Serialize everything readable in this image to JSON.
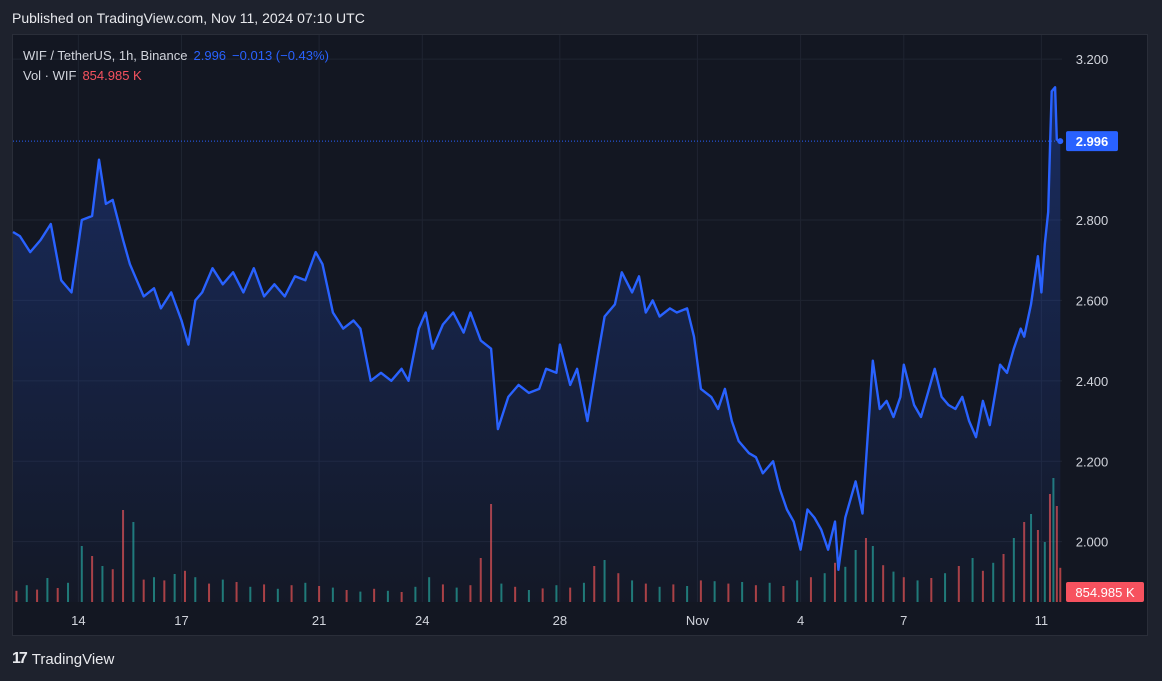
{
  "header": {
    "published": "Published on TradingView.com, Nov 11, 2024 07:10 UTC"
  },
  "legend": {
    "symbol": "WIF / TetherUS, 1h, Binance",
    "last": "2.996",
    "change": "−0.013 (−0.43%)",
    "vol_label": "Vol · WIF",
    "vol_value": "854.985 K"
  },
  "footer": {
    "brand": "TradingView",
    "logo_glyph": "17"
  },
  "colors": {
    "line": "#2962ff",
    "up_volume": "#26a69a",
    "down_volume": "#ef5350",
    "background": "#131722",
    "price_tag": "#2962ff",
    "volume_tag": "#f7525f"
  },
  "chart_data": {
    "type": "area",
    "title": "WIF / TetherUS, 1h, Binance",
    "price_axis": {
      "ylim": [
        1.85,
        3.26
      ],
      "ticks": [
        "3.200",
        "2.800",
        "2.600",
        "2.400",
        "2.200",
        "2.000"
      ]
    },
    "time_axis": {
      "xlim": [
        -1.9,
        28.6
      ],
      "ticks": [
        {
          "label": "14",
          "day": 0
        },
        {
          "label": "17",
          "day": 3
        },
        {
          "label": "21",
          "day": 7
        },
        {
          "label": "24",
          "day": 10
        },
        {
          "label": "28",
          "day": 14
        },
        {
          "label": "Nov",
          "day": 18
        },
        {
          "label": "4",
          "day": 21
        },
        {
          "label": "7",
          "day": 24
        },
        {
          "label": "11",
          "day": 28
        }
      ]
    },
    "last_price": 2.996,
    "last_price_label": "2.996",
    "last_volume_label": "854.985 K",
    "series": [
      {
        "values": [
          [
            -1.9,
            2.77
          ],
          [
            -1.7,
            2.76
          ],
          [
            -1.4,
            2.72
          ],
          [
            -1.1,
            2.75
          ],
          [
            -0.8,
            2.79
          ],
          [
            -0.5,
            2.65
          ],
          [
            -0.2,
            2.62
          ],
          [
            0.1,
            2.8
          ],
          [
            0.4,
            2.81
          ],
          [
            0.6,
            2.95
          ],
          [
            0.8,
            2.84
          ],
          [
            1.0,
            2.85
          ],
          [
            1.3,
            2.75
          ],
          [
            1.5,
            2.69
          ],
          [
            1.7,
            2.65
          ],
          [
            1.9,
            2.61
          ],
          [
            2.2,
            2.63
          ],
          [
            2.4,
            2.58
          ],
          [
            2.7,
            2.62
          ],
          [
            3.0,
            2.55
          ],
          [
            3.2,
            2.49
          ],
          [
            3.4,
            2.6
          ],
          [
            3.6,
            2.62
          ],
          [
            3.9,
            2.68
          ],
          [
            4.2,
            2.64
          ],
          [
            4.5,
            2.67
          ],
          [
            4.8,
            2.62
          ],
          [
            5.1,
            2.68
          ],
          [
            5.4,
            2.61
          ],
          [
            5.7,
            2.64
          ],
          [
            6.0,
            2.61
          ],
          [
            6.3,
            2.66
          ],
          [
            6.6,
            2.65
          ],
          [
            6.9,
            2.72
          ],
          [
            7.1,
            2.69
          ],
          [
            7.4,
            2.57
          ],
          [
            7.7,
            2.53
          ],
          [
            8.0,
            2.55
          ],
          [
            8.2,
            2.53
          ],
          [
            8.5,
            2.4
          ],
          [
            8.8,
            2.42
          ],
          [
            9.1,
            2.4
          ],
          [
            9.4,
            2.43
          ],
          [
            9.6,
            2.4
          ],
          [
            9.9,
            2.53
          ],
          [
            10.1,
            2.57
          ],
          [
            10.3,
            2.48
          ],
          [
            10.6,
            2.54
          ],
          [
            10.9,
            2.57
          ],
          [
            11.2,
            2.52
          ],
          [
            11.4,
            2.57
          ],
          [
            11.7,
            2.5
          ],
          [
            12.0,
            2.48
          ],
          [
            12.2,
            2.28
          ],
          [
            12.5,
            2.36
          ],
          [
            12.8,
            2.39
          ],
          [
            13.1,
            2.37
          ],
          [
            13.4,
            2.38
          ],
          [
            13.6,
            2.43
          ],
          [
            13.9,
            2.42
          ],
          [
            14.0,
            2.49
          ],
          [
            14.3,
            2.39
          ],
          [
            14.5,
            2.43
          ],
          [
            14.8,
            2.3
          ],
          [
            15.1,
            2.46
          ],
          [
            15.3,
            2.56
          ],
          [
            15.6,
            2.59
          ],
          [
            15.8,
            2.67
          ],
          [
            16.1,
            2.62
          ],
          [
            16.3,
            2.66
          ],
          [
            16.5,
            2.57
          ],
          [
            16.7,
            2.6
          ],
          [
            16.9,
            2.56
          ],
          [
            17.2,
            2.58
          ],
          [
            17.4,
            2.57
          ],
          [
            17.7,
            2.58
          ],
          [
            17.9,
            2.51
          ],
          [
            18.1,
            2.38
          ],
          [
            18.4,
            2.36
          ],
          [
            18.6,
            2.33
          ],
          [
            18.8,
            2.38
          ],
          [
            19.0,
            2.3
          ],
          [
            19.2,
            2.25
          ],
          [
            19.5,
            2.22
          ],
          [
            19.7,
            2.21
          ],
          [
            19.9,
            2.17
          ],
          [
            20.2,
            2.2
          ],
          [
            20.4,
            2.13
          ],
          [
            20.6,
            2.08
          ],
          [
            20.8,
            2.05
          ],
          [
            21.0,
            1.98
          ],
          [
            21.2,
            2.08
          ],
          [
            21.4,
            2.06
          ],
          [
            21.6,
            2.03
          ],
          [
            21.8,
            1.98
          ],
          [
            22.0,
            2.05
          ],
          [
            22.1,
            1.93
          ],
          [
            22.3,
            2.06
          ],
          [
            22.6,
            2.15
          ],
          [
            22.8,
            2.07
          ],
          [
            22.9,
            2.2
          ],
          [
            23.1,
            2.45
          ],
          [
            23.3,
            2.33
          ],
          [
            23.5,
            2.35
          ],
          [
            23.7,
            2.31
          ],
          [
            23.9,
            2.36
          ],
          [
            24.0,
            2.44
          ],
          [
            24.3,
            2.34
          ],
          [
            24.5,
            2.31
          ],
          [
            24.7,
            2.37
          ],
          [
            24.9,
            2.43
          ],
          [
            25.1,
            2.36
          ],
          [
            25.3,
            2.34
          ],
          [
            25.5,
            2.33
          ],
          [
            25.7,
            2.36
          ],
          [
            25.9,
            2.3
          ],
          [
            26.1,
            2.26
          ],
          [
            26.3,
            2.35
          ],
          [
            26.5,
            2.29
          ],
          [
            26.8,
            2.44
          ],
          [
            27.0,
            2.42
          ],
          [
            27.2,
            2.48
          ],
          [
            27.4,
            2.53
          ],
          [
            27.5,
            2.51
          ],
          [
            27.7,
            2.59
          ],
          [
            27.9,
            2.71
          ],
          [
            28.0,
            2.62
          ],
          [
            28.1,
            2.74
          ],
          [
            28.2,
            2.82
          ],
          [
            28.25,
            2.98
          ],
          [
            28.3,
            3.12
          ],
          [
            28.4,
            3.13
          ],
          [
            28.45,
            3.0
          ],
          [
            28.55,
            2.996
          ]
        ]
      }
    ],
    "volume_series": {
      "max": 3500000,
      "values": [
        [
          -1.8,
          280000,
          "down"
        ],
        [
          -1.5,
          420000,
          "up"
        ],
        [
          -1.2,
          310000,
          "down"
        ],
        [
          -0.9,
          600000,
          "up"
        ],
        [
          -0.6,
          350000,
          "down"
        ],
        [
          -0.3,
          480000,
          "up"
        ],
        [
          0.1,
          1400000,
          "up"
        ],
        [
          0.4,
          1150000,
          "down"
        ],
        [
          0.7,
          900000,
          "up"
        ],
        [
          1.0,
          820000,
          "down"
        ],
        [
          1.3,
          2300000,
          "down"
        ],
        [
          1.6,
          2000000,
          "up"
        ],
        [
          1.9,
          560000,
          "down"
        ],
        [
          2.2,
          620000,
          "up"
        ],
        [
          2.5,
          540000,
          "down"
        ],
        [
          2.8,
          700000,
          "up"
        ],
        [
          3.1,
          780000,
          "down"
        ],
        [
          3.4,
          620000,
          "up"
        ],
        [
          3.8,
          460000,
          "down"
        ],
        [
          4.2,
          560000,
          "up"
        ],
        [
          4.6,
          500000,
          "down"
        ],
        [
          5.0,
          380000,
          "up"
        ],
        [
          5.4,
          440000,
          "down"
        ],
        [
          5.8,
          330000,
          "up"
        ],
        [
          6.2,
          420000,
          "down"
        ],
        [
          6.6,
          480000,
          "up"
        ],
        [
          7.0,
          400000,
          "down"
        ],
        [
          7.4,
          360000,
          "up"
        ],
        [
          7.8,
          300000,
          "down"
        ],
        [
          8.2,
          260000,
          "up"
        ],
        [
          8.6,
          330000,
          "down"
        ],
        [
          9.0,
          280000,
          "up"
        ],
        [
          9.4,
          250000,
          "down"
        ],
        [
          9.8,
          380000,
          "up"
        ],
        [
          10.2,
          620000,
          "up"
        ],
        [
          10.6,
          440000,
          "down"
        ],
        [
          11.0,
          360000,
          "up"
        ],
        [
          11.4,
          420000,
          "down"
        ],
        [
          11.7,
          1100000,
          "down"
        ],
        [
          12.0,
          2450000,
          "down"
        ],
        [
          12.3,
          460000,
          "up"
        ],
        [
          12.7,
          380000,
          "down"
        ],
        [
          13.1,
          300000,
          "up"
        ],
        [
          13.5,
          340000,
          "down"
        ],
        [
          13.9,
          420000,
          "up"
        ],
        [
          14.3,
          360000,
          "down"
        ],
        [
          14.7,
          480000,
          "up"
        ],
        [
          15.0,
          900000,
          "down"
        ],
        [
          15.3,
          1050000,
          "up"
        ],
        [
          15.7,
          720000,
          "down"
        ],
        [
          16.1,
          540000,
          "up"
        ],
        [
          16.5,
          460000,
          "down"
        ],
        [
          16.9,
          380000,
          "up"
        ],
        [
          17.3,
          440000,
          "down"
        ],
        [
          17.7,
          400000,
          "up"
        ],
        [
          18.1,
          540000,
          "down"
        ],
        [
          18.5,
          520000,
          "up"
        ],
        [
          18.9,
          460000,
          "down"
        ],
        [
          19.3,
          500000,
          "up"
        ],
        [
          19.7,
          420000,
          "down"
        ],
        [
          20.1,
          480000,
          "up"
        ],
        [
          20.5,
          400000,
          "down"
        ],
        [
          20.9,
          540000,
          "up"
        ],
        [
          21.3,
          620000,
          "down"
        ],
        [
          21.7,
          720000,
          "up"
        ],
        [
          22.0,
          980000,
          "down"
        ],
        [
          22.3,
          880000,
          "up"
        ],
        [
          22.6,
          1300000,
          "up"
        ],
        [
          22.9,
          1600000,
          "down"
        ],
        [
          23.1,
          1400000,
          "up"
        ],
        [
          23.4,
          920000,
          "down"
        ],
        [
          23.7,
          760000,
          "up"
        ],
        [
          24.0,
          620000,
          "down"
        ],
        [
          24.4,
          540000,
          "up"
        ],
        [
          24.8,
          600000,
          "down"
        ],
        [
          25.2,
          720000,
          "up"
        ],
        [
          25.6,
          900000,
          "down"
        ],
        [
          26.0,
          1100000,
          "up"
        ],
        [
          26.3,
          780000,
          "down"
        ],
        [
          26.6,
          980000,
          "up"
        ],
        [
          26.9,
          1200000,
          "down"
        ],
        [
          27.2,
          1600000,
          "up"
        ],
        [
          27.5,
          2000000,
          "down"
        ],
        [
          27.7,
          2200000,
          "up"
        ],
        [
          27.9,
          1800000,
          "down"
        ],
        [
          28.1,
          1500000,
          "up"
        ],
        [
          28.25,
          2700000,
          "down"
        ],
        [
          28.35,
          3100000,
          "up"
        ],
        [
          28.45,
          2400000,
          "down"
        ],
        [
          28.55,
          854985,
          "down"
        ]
      ]
    }
  }
}
